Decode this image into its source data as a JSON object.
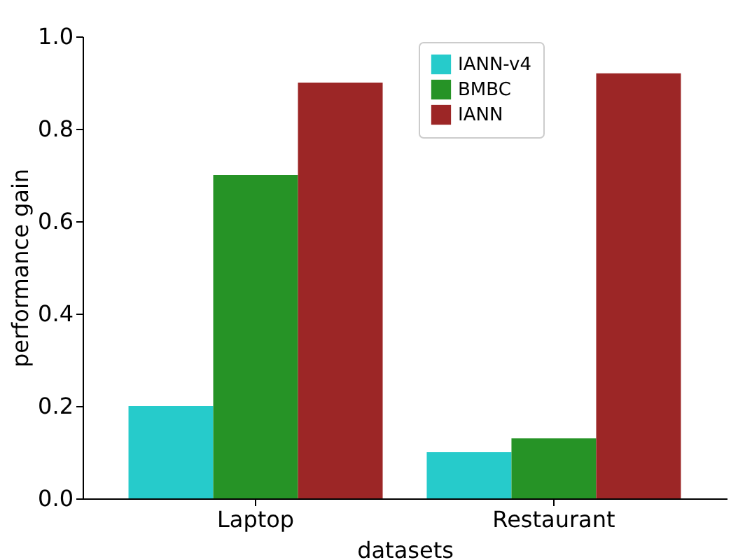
{
  "chart_data": {
    "type": "bar",
    "xlabel": "datasets",
    "ylabel": "performance gain",
    "categories": [
      "Laptop",
      "Restaurant"
    ],
    "series": [
      {
        "name": "IANN-v4",
        "color": "#26cbcb",
        "values": [
          0.2,
          0.1
        ]
      },
      {
        "name": "BMBC",
        "color": "#269326",
        "values": [
          0.7,
          0.13
        ]
      },
      {
        "name": "IANN",
        "color": "#9c2626",
        "values": [
          0.9,
          0.92
        ]
      }
    ],
    "ylim": [
      0,
      1.0
    ],
    "yticks": [
      {
        "value": 0,
        "label": "0.0"
      },
      {
        "value": 0.2,
        "label": "0.2"
      },
      {
        "value": 0.4,
        "label": "0.4"
      },
      {
        "value": 0.6,
        "label": "0.6"
      },
      {
        "value": 0.8,
        "label": "0.8"
      },
      {
        "value": 1.0,
        "label": "1.0"
      }
    ],
    "grid": false,
    "legend": "top"
  }
}
